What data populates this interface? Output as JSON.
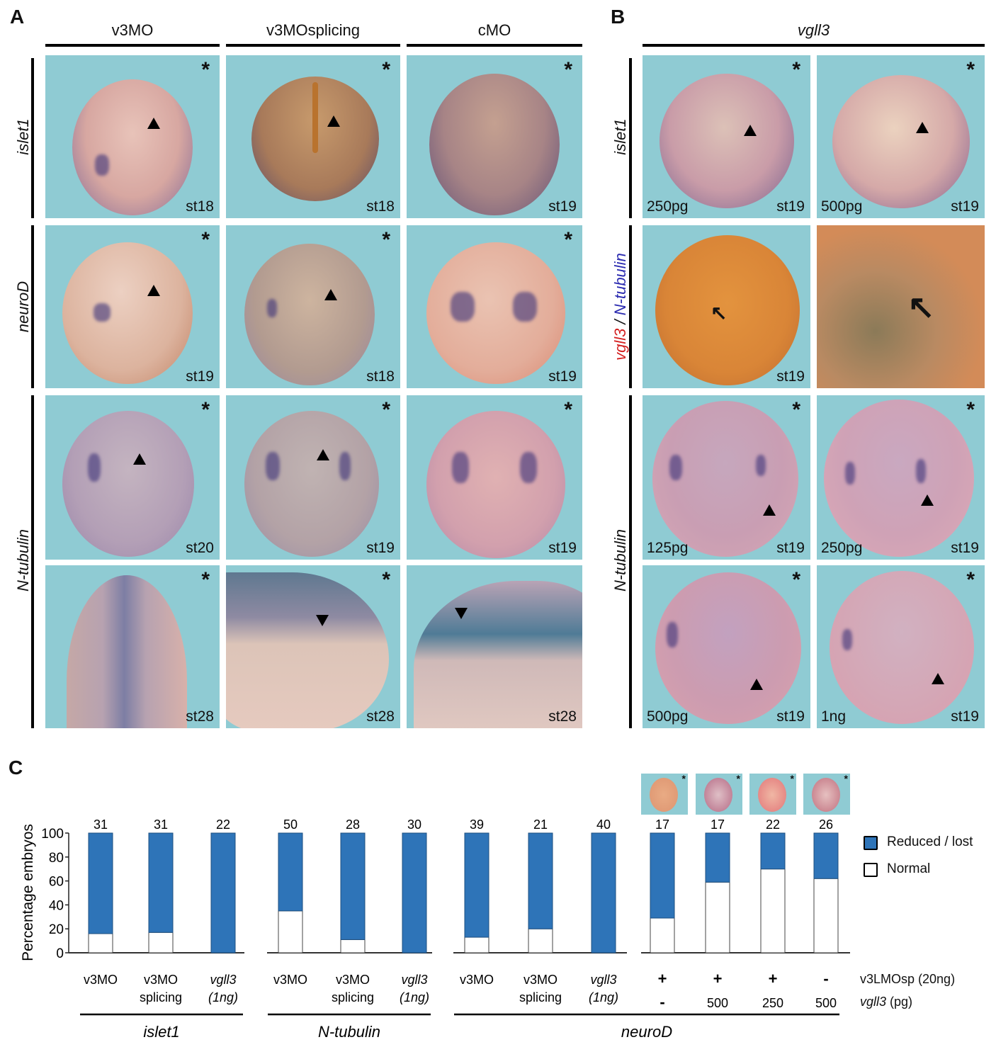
{
  "panel_a": {
    "label": "A",
    "columns": [
      "v3MO",
      "v3MOsplicing",
      "cMO"
    ],
    "rows": [
      {
        "marker": "islet1",
        "stages": [
          "st18",
          "st18",
          "st19"
        ],
        "asterisk": "*"
      },
      {
        "marker": "neuroD",
        "stages": [
          "st19",
          "st18",
          "st19"
        ],
        "asterisk": "*"
      },
      {
        "marker": "N-tubulin",
        "stages": [
          "st20",
          "st19",
          "st19"
        ],
        "asterisk": "*"
      },
      {
        "marker": "",
        "stages": [
          "st28",
          "st28",
          "st28"
        ],
        "asterisk": "*"
      }
    ]
  },
  "panel_b": {
    "label": "B",
    "header": "vgll3",
    "row_labels": {
      "islet1": "islet1",
      "double_red": "vgll3",
      "double_sep": " / ",
      "double_blue": "N-tubulin",
      "ntubulin": "N-tubulin"
    },
    "panels": [
      {
        "dose": "250pg",
        "stage": "st19"
      },
      {
        "dose": "500pg",
        "stage": "st19"
      },
      {
        "dose": "",
        "stage": "st19"
      },
      {
        "dose": "",
        "stage": ""
      },
      {
        "dose": "125pg",
        "stage": "st19"
      },
      {
        "dose": "250pg",
        "stage": "st19"
      },
      {
        "dose": "500pg",
        "stage": "st19"
      },
      {
        "dose": "1ng",
        "stage": "st19"
      }
    ],
    "asterisk": "*"
  },
  "panel_c": {
    "label": "C"
  },
  "colors": {
    "reduced": "#2e74b8",
    "normal": "#ffffff",
    "panel_bg": "#8fcbd3",
    "vgll3_red": "#d42020",
    "ntub_blue": "#2b2bb0"
  },
  "chart_data": {
    "type": "bar",
    "stacked": true,
    "title": "",
    "ylabel": "Percentage embryos",
    "xlabel": "",
    "ylim": [
      0,
      100
    ],
    "yticks": [
      0,
      20,
      40,
      60,
      80,
      100
    ],
    "grid": false,
    "legend": {
      "placement": "right",
      "entries": [
        "Reduced / lost",
        "Normal"
      ]
    },
    "groups": [
      {
        "name": "islet1",
        "categories": [
          {
            "line1": "v3MO",
            "line2": "",
            "italic": false
          },
          {
            "line1": "v3MO",
            "line2": "splicing",
            "italic": false
          },
          {
            "line1": "vgll3",
            "line2": "(1ng)",
            "italic": true
          }
        ],
        "n": [
          31,
          31,
          22
        ]
      },
      {
        "name": "N-tubulin",
        "categories": [
          {
            "line1": "v3MO",
            "line2": "",
            "italic": false
          },
          {
            "line1": "v3MO",
            "line2": "splicing",
            "italic": false
          },
          {
            "line1": "vgll3",
            "line2": "(1ng)",
            "italic": true
          }
        ],
        "n": [
          50,
          28,
          30
        ]
      },
      {
        "name": "neuroD",
        "categories": [
          {
            "line1": "v3MO",
            "line2": "",
            "italic": false
          },
          {
            "line1": "v3MO",
            "line2": "splicing",
            "italic": false
          },
          {
            "line1": "vgll3",
            "line2": "(1ng)",
            "italic": true
          },
          {
            "line1": "+",
            "line2": "-"
          },
          {
            "line1": "+",
            "line2": "500"
          },
          {
            "line1": "+",
            "line2": "250"
          },
          {
            "line1": "-",
            "line2": "500"
          }
        ],
        "n": [
          39,
          21,
          40,
          17,
          17,
          22,
          26
        ]
      }
    ],
    "series": [
      {
        "name": "Normal",
        "values": [
          16,
          17,
          0,
          35,
          11,
          0,
          13,
          20,
          0,
          29,
          59,
          70,
          62
        ]
      },
      {
        "name": "Reduced / lost",
        "values": [
          84,
          83,
          100,
          65,
          89,
          100,
          87,
          80,
          100,
          71,
          41,
          30,
          38
        ]
      }
    ],
    "rescue_row_labels": {
      "row1": "v3LMOsp (20ng)",
      "row2_italic": "vgll3",
      "row2_rest": " (pg)"
    },
    "thumbnail_asterisk": "*"
  }
}
